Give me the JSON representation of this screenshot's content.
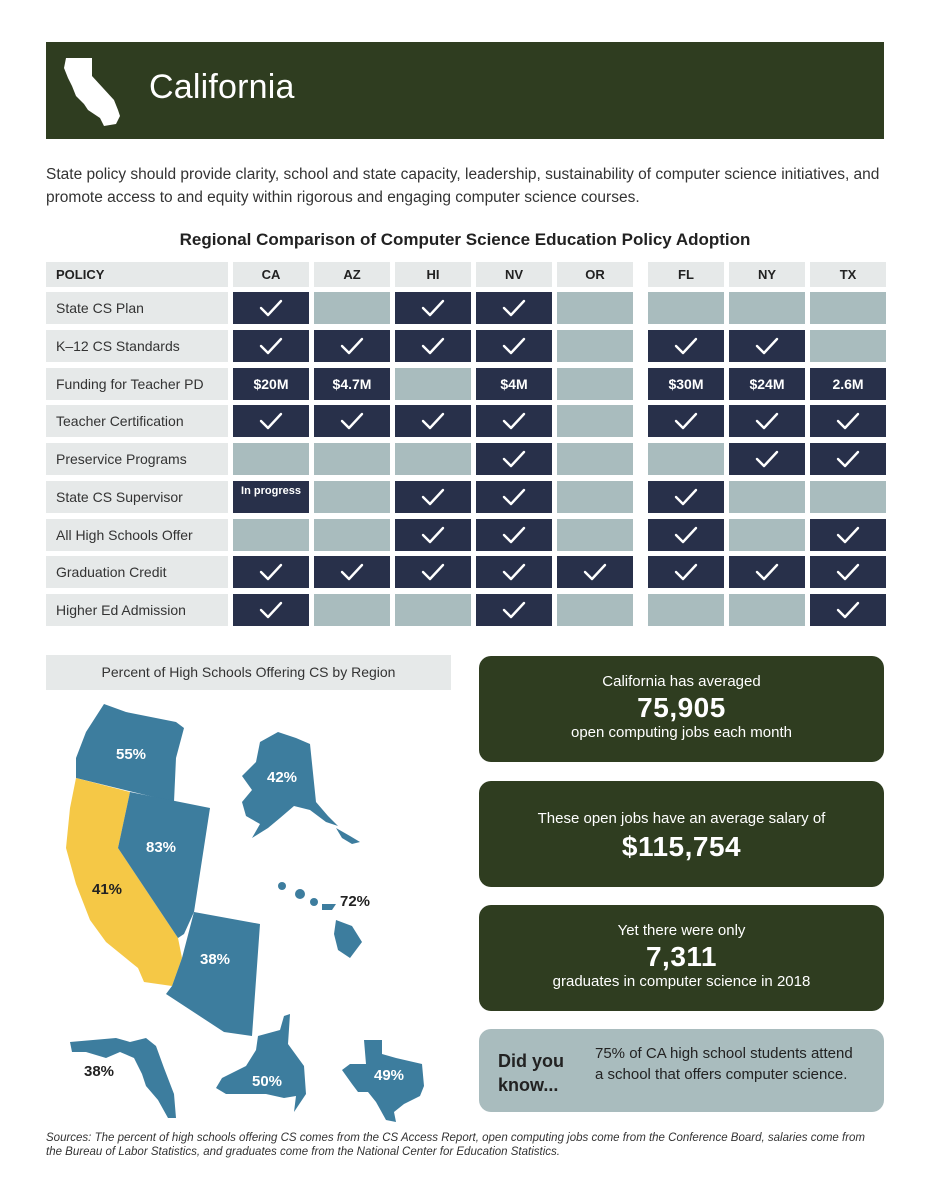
{
  "header": {
    "title": "California"
  },
  "intro": "State policy should provide clarity, school and state capacity, leadership, sustainability of computer science initiatives, and promote access to and equity within rigorous and engaging computer science courses.",
  "table": {
    "title": "Regional Comparison of Computer Science Education Policy Adoption",
    "policy_header": "POLICY",
    "states": [
      "CA",
      "AZ",
      "HI",
      "NV",
      "OR",
      "FL",
      "NY",
      "TX"
    ],
    "rows": [
      {
        "label": "State CS Plan",
        "cells": [
          "check",
          "",
          "check",
          "check",
          "",
          "",
          "",
          ""
        ]
      },
      {
        "label": "K–12 CS Standards",
        "cells": [
          "check",
          "check",
          "check",
          "check",
          "",
          "check",
          "check",
          ""
        ]
      },
      {
        "label": "Funding for Teacher PD",
        "cells": [
          "$20M",
          "$4.7M",
          "",
          "$4M",
          "",
          "$30M",
          "$24M",
          "2.6M"
        ]
      },
      {
        "label": "Teacher Certification",
        "cells": [
          "check",
          "check",
          "check",
          "check",
          "",
          "check",
          "check",
          "check"
        ]
      },
      {
        "label": "Preservice Programs",
        "cells": [
          "",
          "",
          "",
          "check",
          "",
          "",
          "check",
          "check"
        ]
      },
      {
        "label": "State CS Supervisor",
        "cells": [
          "In progress",
          "",
          "check",
          "check",
          "",
          "check",
          "",
          ""
        ]
      },
      {
        "label": "All High Schools Offer",
        "cells": [
          "",
          "",
          "check",
          "check",
          "",
          "check",
          "",
          "check"
        ]
      },
      {
        "label": "Graduation Credit",
        "cells": [
          "check",
          "check",
          "check",
          "check",
          "check",
          "check",
          "check",
          "check"
        ]
      },
      {
        "label": "Higher Ed Admission",
        "cells": [
          "check",
          "",
          "",
          "check",
          "",
          "",
          "",
          "check"
        ]
      }
    ],
    "colors": {
      "adopted": "#28304a",
      "not_adopted": "#a9bcbe",
      "header_bg": "#e6e9e9"
    }
  },
  "map": {
    "title": "Percent of High Schools Offering CS by Region",
    "regions": {
      "OR": "55%",
      "AK": "42%",
      "NV": "83%",
      "CA": "41%",
      "HI": "72%",
      "AZ": "38%",
      "FL": "38%",
      "NY": "50%",
      "TX": "49%"
    },
    "colors": {
      "highlight": "#f5c846",
      "other": "#3d7d9e"
    }
  },
  "stats": [
    {
      "line1": "California has averaged",
      "big": "75,905",
      "line2": "open computing jobs each month"
    },
    {
      "line1": "These open jobs have an average salary of",
      "big": "$115,754",
      "line2": ""
    },
    {
      "line1": "Yet there were only",
      "big": "7,311",
      "line2": "graduates in computer science in 2018"
    }
  ],
  "did_you_know": {
    "label": "Did you know...",
    "text": "75% of CA high school students attend a school that offers computer science."
  },
  "sources": "Sources: The percent of high schools offering CS comes from the CS Access Report, open computing jobs come from the Conference Board, salaries come from the Bureau of Labor Statistics, and graduates come from the National Center for Education Statistics.",
  "colors": {
    "header_bg": "#2f3d20",
    "stat_bg": "#2f3d20",
    "dyk_bg": "#a9bcbe"
  }
}
